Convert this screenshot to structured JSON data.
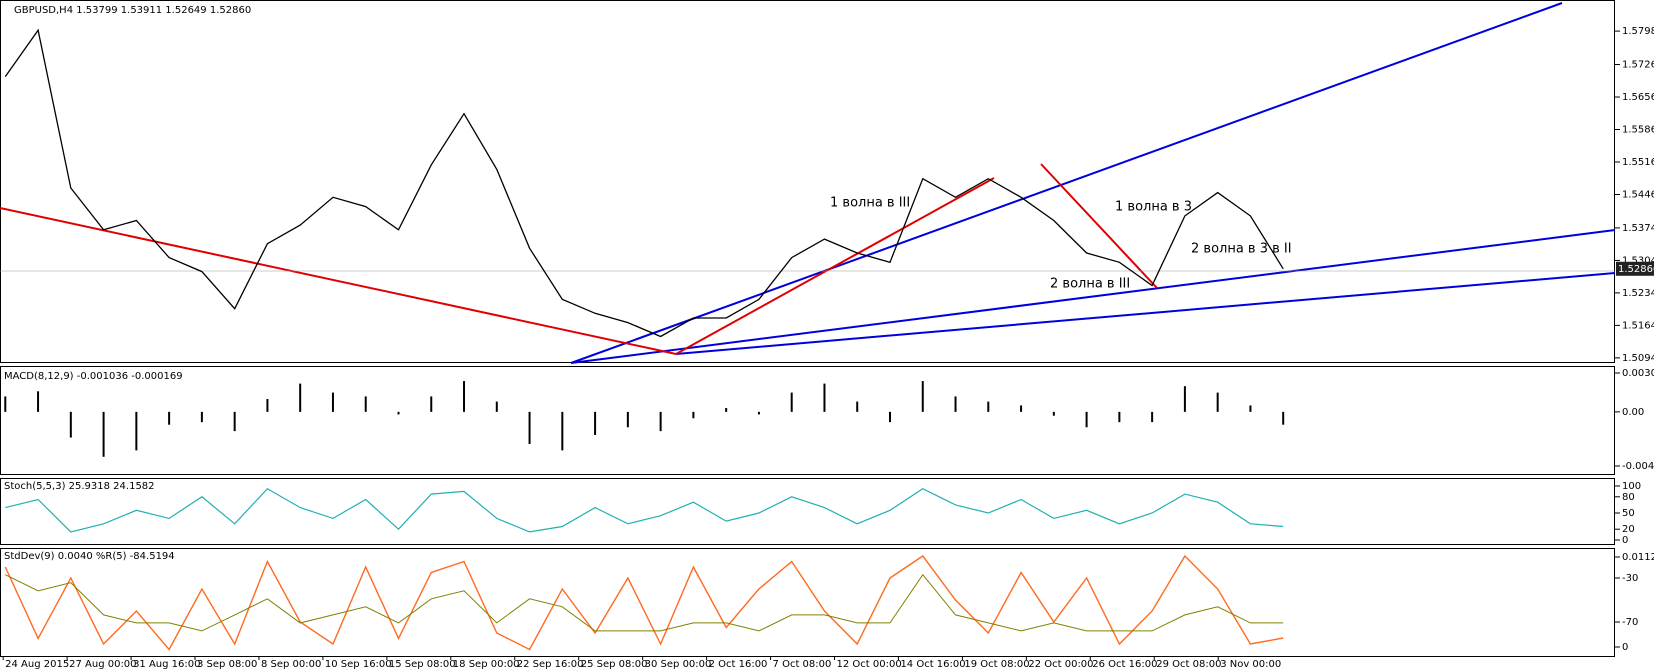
{
  "main": {
    "header": "GBPUSD,H4 1.53799 1.53911 1.52649 1.52860",
    "ylim": [
      1.5083,
      1.5865
    ],
    "yticks": [
      {
        "value": 1.5798,
        "label": "1.57980"
      },
      {
        "value": 1.5726,
        "label": "1.57260"
      },
      {
        "value": 1.5656,
        "label": "1.56560"
      },
      {
        "value": 1.5586,
        "label": "1.55860"
      },
      {
        "value": 1.5516,
        "label": "1.55160"
      },
      {
        "value": 1.5446,
        "label": "1.54460"
      },
      {
        "value": 1.5374,
        "label": "1.53740"
      },
      {
        "value": 1.5304,
        "label": "1.53040"
      },
      {
        "value": 1.5234,
        "label": "1.52340"
      },
      {
        "value": 1.5164,
        "label": "1.51640"
      },
      {
        "value": 1.5094,
        "label": "1.50940"
      }
    ],
    "current_price": {
      "value": 1.5286,
      "label": "1.52860"
    },
    "close": [
      1.57,
      1.58,
      1.546,
      1.537,
      1.539,
      1.531,
      1.528,
      1.52,
      1.534,
      1.538,
      1.544,
      1.542,
      1.537,
      1.551,
      1.562,
      1.55,
      1.533,
      1.522,
      1.519,
      1.517,
      1.514,
      1.518,
      1.518,
      1.522,
      1.531,
      1.535,
      1.532,
      1.53,
      1.548,
      1.544,
      1.548,
      1.544,
      1.539,
      1.532,
      1.53,
      1.525,
      1.54,
      1.545,
      1.54,
      1.5286
    ],
    "annotations": [
      "1 волна в III",
      "1 волна в 3",
      "2 волна в 3 в II",
      "2 волна в III"
    ]
  },
  "macd": {
    "header": "MACD(8,12,9) -0.001036 -0.000169",
    "ylim": [
      -0.004216,
      0.003026
    ],
    "yticks": [
      0.003026,
      {
        "value": 0,
        "label": "0.00"
      },
      -0.004216
    ],
    "values": [
      0.0012,
      0.0016,
      -0.002,
      -0.0035,
      -0.003,
      -0.001,
      -0.0008,
      -0.0015,
      0.001,
      0.0022,
      0.0015,
      0.0012,
      -0.0002,
      0.0012,
      0.0024,
      0.0008,
      -0.0025,
      -0.003,
      -0.0018,
      -0.0012,
      -0.0015,
      -0.0005,
      0.0003,
      -0.0002,
      0.0015,
      0.0022,
      0.0008,
      -0.0008,
      0.0024,
      0.0012,
      0.0008,
      0.0005,
      -0.0003,
      -0.0012,
      -0.0008,
      -0.0008,
      0.002,
      0.0015,
      0.0005,
      -0.001
    ]
  },
  "stoch": {
    "header": "Stoch(5,5,3) 25.9318 24.1582",
    "ylim": [
      0,
      100
    ],
    "yticks": [
      100,
      80,
      50,
      20,
      0
    ],
    "values": [
      60,
      75,
      15,
      30,
      55,
      40,
      80,
      30,
      95,
      60,
      40,
      75,
      20,
      85,
      90,
      40,
      15,
      25,
      60,
      30,
      45,
      70,
      35,
      50,
      80,
      60,
      30,
      55,
      95,
      65,
      50,
      75,
      40,
      55,
      30,
      50,
      85,
      70,
      30,
      25
    ]
  },
  "stddev": {
    "header": "StdDev(9) 0.0040  %R(5) -84.5194",
    "ylim": [
      0,
      0.0112
    ],
    "yticks": [
      0.0112,
      0
    ],
    "wpr_ylim": [
      -100,
      0
    ],
    "wpr_ticks": [
      -30,
      -70
    ],
    "stddev_values": [
      0.009,
      0.007,
      0.008,
      0.004,
      0.003,
      0.003,
      0.002,
      0.004,
      0.006,
      0.003,
      0.004,
      0.005,
      0.003,
      0.006,
      0.007,
      0.003,
      0.006,
      0.005,
      0.002,
      0.002,
      0.002,
      0.003,
      0.003,
      0.002,
      0.004,
      0.004,
      0.003,
      0.003,
      0.009,
      0.004,
      0.003,
      0.002,
      0.003,
      0.002,
      0.002,
      0.002,
      0.004,
      0.005,
      0.003,
      0.003
    ],
    "wpr_values": [
      -20,
      -85,
      -30,
      -90,
      -60,
      -95,
      -40,
      -90,
      -15,
      -70,
      -90,
      -20,
      -85,
      -25,
      -15,
      -80,
      -95,
      -40,
      -80,
      -30,
      -90,
      -20,
      -75,
      -40,
      -15,
      -60,
      -90,
      -30,
      -10,
      -50,
      -80,
      -25,
      -70,
      -30,
      -90,
      -60,
      -10,
      -40,
      -90,
      -84.5
    ]
  },
  "time_labels": [
    "24 Aug 2015",
    "27 Aug 00:00",
    "31 Aug 16:00",
    "3 Sep 08:00",
    "8 Sep 00:00",
    "10 Sep 16:00",
    "15 Sep 08:00",
    "18 Sep 00:00",
    "22 Sep 16:00",
    "25 Sep 08:00",
    "30 Sep 00:00",
    "2 Oct 16:00",
    "7 Oct 08:00",
    "12 Oct 00:00",
    "14 Oct 16:00",
    "19 Oct 08:00",
    "22 Oct 00:00",
    "26 Oct 16:00",
    "29 Oct 08:00",
    "3 Nov 00:00"
  ]
}
